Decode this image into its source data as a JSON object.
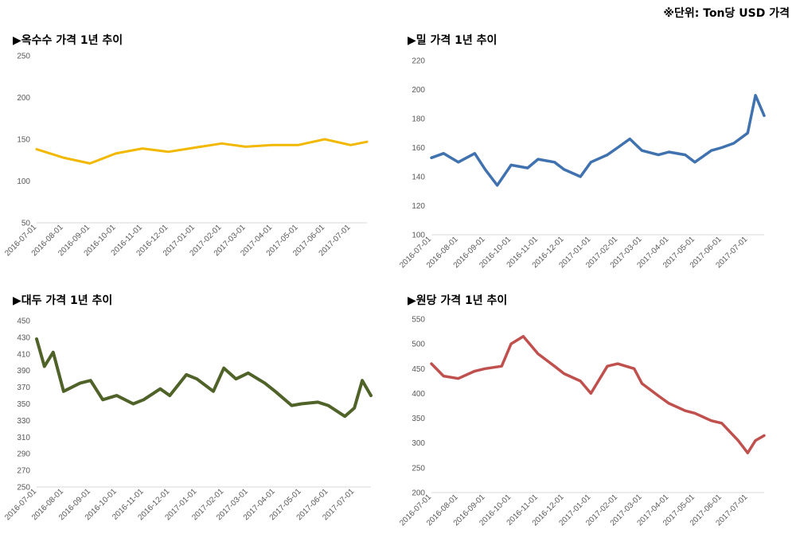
{
  "unit_note": "※단위: Ton당 USD 가격",
  "chart_data": [
    {
      "id": "corn",
      "type": "line",
      "title": "▶옥수수 가격 1년 추이",
      "color": "#F2B800",
      "yticks": [
        50,
        100,
        150,
        200,
        250
      ],
      "ylim": [
        50,
        250
      ],
      "x": [
        "2016-07-01",
        "2016-08-01",
        "2016-09-01",
        "2016-10-01",
        "2016-11-01",
        "2016-12-01",
        "2017-01-01",
        "2017-02-01",
        "2017-03-01",
        "2017-04-01",
        "2017-05-01",
        "2017-06-01",
        "2017-07-01",
        "2017-07-20"
      ],
      "values": [
        138,
        128,
        121,
        133,
        139,
        135,
        140,
        145,
        141,
        143,
        143,
        150,
        143,
        147
      ],
      "xticks": [
        "2016-07-01",
        "2016-08-01",
        "2016-09-01",
        "2016-10-01",
        "2016-11-01",
        "2016-12-01",
        "2017-01-01",
        "2017-02-01",
        "2017-03-01",
        "2017-04-01",
        "2017-05-01",
        "2017-06-01",
        "2017-07-01"
      ]
    },
    {
      "id": "wheat",
      "type": "line",
      "title": "▶밀 가격 1년 추이",
      "color": "#3F72AF",
      "yticks": [
        100,
        120,
        140,
        160,
        180,
        200,
        220
      ],
      "ylim": [
        100,
        220
      ],
      "x": [
        "2016-07-01",
        "2016-07-15",
        "2016-08-01",
        "2016-08-20",
        "2016-09-01",
        "2016-09-15",
        "2016-10-01",
        "2016-10-20",
        "2016-11-01",
        "2016-11-20",
        "2016-12-01",
        "2016-12-20",
        "2017-01-01",
        "2017-01-20",
        "2017-02-01",
        "2017-02-15",
        "2017-03-01",
        "2017-03-20",
        "2017-04-01",
        "2017-04-20",
        "2017-05-01",
        "2017-05-20",
        "2017-06-01",
        "2017-06-15",
        "2017-07-01",
        "2017-07-10",
        "2017-07-20"
      ],
      "values": [
        153,
        156,
        150,
        156,
        145,
        134,
        148,
        146,
        152,
        150,
        145,
        140,
        150,
        155,
        160,
        166,
        158,
        155,
        157,
        155,
        150,
        158,
        160,
        163,
        170,
        196,
        182
      ],
      "xticks": [
        "2016-07-01",
        "2016-08-01",
        "2016-09-01",
        "2016-10-01",
        "2016-11-01",
        "2016-12-01",
        "2017-01-01",
        "2017-02-01",
        "2017-03-01",
        "2017-04-01",
        "2017-05-01",
        "2017-06-01",
        "2017-07-01"
      ]
    },
    {
      "id": "soy",
      "type": "line",
      "title": "▶대두 가격 1년 추이",
      "color": "#4F6228",
      "yticks": [
        250,
        270,
        290,
        310,
        330,
        350,
        370,
        390,
        410,
        430,
        450
      ],
      "ylim": [
        250,
        450
      ],
      "x": [
        "2016-07-01",
        "2016-07-10",
        "2016-07-20",
        "2016-08-01",
        "2016-08-20",
        "2016-09-01",
        "2016-09-15",
        "2016-10-01",
        "2016-10-20",
        "2016-11-01",
        "2016-11-20",
        "2016-12-01",
        "2016-12-20",
        "2017-01-01",
        "2017-01-20",
        "2017-02-01",
        "2017-02-15",
        "2017-03-01",
        "2017-03-20",
        "2017-04-01",
        "2017-04-20",
        "2017-05-01",
        "2017-05-20",
        "2017-06-01",
        "2017-06-20",
        "2017-07-01",
        "2017-07-10",
        "2017-07-20"
      ],
      "values": [
        428,
        395,
        412,
        365,
        375,
        378,
        355,
        360,
        350,
        355,
        368,
        360,
        385,
        380,
        365,
        393,
        380,
        387,
        375,
        365,
        348,
        350,
        352,
        348,
        335,
        345,
        378,
        360
      ],
      "xticks": [
        "2016-07-01",
        "2016-08-01",
        "2016-09-01",
        "2016-10-01",
        "2016-11-01",
        "2016-12-01",
        "2017-01-01",
        "2017-02-01",
        "2017-03-01",
        "2017-04-01",
        "2017-05-01",
        "2017-06-01",
        "2017-07-01"
      ]
    },
    {
      "id": "sugar",
      "type": "line",
      "title": "▶원당 가격 1년 추이",
      "color": "#C0504D",
      "yticks": [
        200,
        250,
        300,
        350,
        400,
        450,
        500,
        550
      ],
      "ylim": [
        200,
        550
      ],
      "x": [
        "2016-07-01",
        "2016-07-15",
        "2016-08-01",
        "2016-08-20",
        "2016-09-01",
        "2016-09-20",
        "2016-10-01",
        "2016-10-15",
        "2016-11-01",
        "2016-11-20",
        "2016-12-01",
        "2016-12-20",
        "2017-01-01",
        "2017-01-20",
        "2017-02-01",
        "2017-02-20",
        "2017-03-01",
        "2017-03-20",
        "2017-04-01",
        "2017-04-20",
        "2017-05-01",
        "2017-05-20",
        "2017-06-01",
        "2017-06-20",
        "2017-07-01",
        "2017-07-10",
        "2017-07-20"
      ],
      "values": [
        460,
        435,
        430,
        445,
        450,
        455,
        500,
        515,
        480,
        455,
        440,
        425,
        400,
        455,
        460,
        450,
        420,
        395,
        380,
        365,
        360,
        345,
        340,
        305,
        280,
        305,
        315
      ],
      "xticks": [
        "2016-07-01",
        "2016-08-01",
        "2016-09-01",
        "2016-10-01",
        "2016-11-01",
        "2016-12-01",
        "2017-01-01",
        "2017-02-01",
        "2017-03-01",
        "2017-04-01",
        "2017-05-01",
        "2017-06-01",
        "2017-07-01"
      ]
    }
  ]
}
